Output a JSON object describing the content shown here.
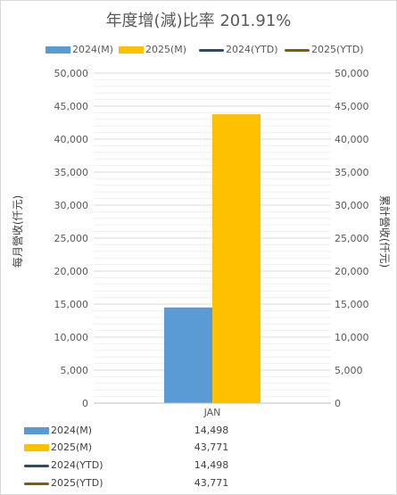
{
  "colors": {
    "m2024": "#5b9bd5",
    "m2025": "#ffc000",
    "ytd2024": "#1f4e79",
    "ytd2025": "#7f6000"
  },
  "chart_data": {
    "type": "bar",
    "title": "年度增(減)比率 201.91%",
    "categories": [
      "JAN"
    ],
    "series": [
      {
        "name": "2024(M)",
        "type": "bar",
        "axis": "left",
        "values": [
          14498
        ],
        "display": [
          "14,498"
        ]
      },
      {
        "name": "2025(M)",
        "type": "bar",
        "axis": "left",
        "values": [
          43771
        ],
        "display": [
          "43,771"
        ]
      },
      {
        "name": "2024(YTD)",
        "type": "line",
        "axis": "right",
        "values": [
          14498
        ],
        "display": [
          "14,498"
        ]
      },
      {
        "name": "2025(YTD)",
        "type": "line",
        "axis": "right",
        "values": [
          43771
        ],
        "display": [
          "43,771"
        ]
      }
    ],
    "ylabel": "每月營收(仟元)",
    "y2label": "累計營收(仟元)",
    "ylim": [
      0,
      50000
    ],
    "y2lim": [
      0,
      50000
    ],
    "ticks": [
      "0",
      "5,000",
      "10,000",
      "15,000",
      "20,000",
      "25,000",
      "30,000",
      "35,000",
      "40,000",
      "45,000",
      "50,000"
    ],
    "grid": true,
    "legend": "top",
    "data_table": true
  }
}
